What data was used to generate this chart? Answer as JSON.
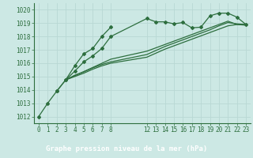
{
  "xlabel": "Graphe pression niveau de la mer (hPa)",
  "bg_color": "#cce8e4",
  "grid_color": "#b8d8d4",
  "line_color": "#2d6e3e",
  "bar_color": "#2d6e3e",
  "bar_text_color": "#ffffff",
  "ylim": [
    1011.5,
    1020.5
  ],
  "xlim": [
    -0.5,
    23.5
  ],
  "yticks": [
    1012,
    1013,
    1014,
    1015,
    1016,
    1017,
    1018,
    1019,
    1020
  ],
  "xticks": [
    0,
    1,
    2,
    3,
    4,
    5,
    6,
    7,
    8,
    12,
    13,
    14,
    15,
    16,
    17,
    18,
    19,
    20,
    21,
    22,
    23
  ],
  "series": [
    {
      "x": [
        0,
        1,
        2,
        3,
        4,
        5,
        6,
        7,
        8,
        12,
        13,
        14,
        15,
        16,
        17,
        18,
        19,
        20,
        21,
        22,
        23
      ],
      "y": [
        1012.0,
        1013.0,
        1013.9,
        1014.75,
        1015.4,
        1016.1,
        1016.55,
        1017.1,
        1018.0,
        1019.35,
        1019.1,
        1019.1,
        1018.95,
        1019.05,
        1018.65,
        1018.7,
        1019.55,
        1019.75,
        1019.75,
        1019.45,
        1018.9
      ],
      "marker": true
    },
    {
      "x": [
        3,
        4,
        5,
        6,
        7,
        8,
        12,
        13,
        14,
        15,
        16,
        17,
        18,
        19,
        20,
        21,
        22,
        23
      ],
      "y": [
        1014.75,
        1015.1,
        1015.35,
        1015.65,
        1015.9,
        1016.1,
        1016.65,
        1016.95,
        1017.25,
        1017.5,
        1017.75,
        1018.0,
        1018.25,
        1018.5,
        1018.8,
        1019.05,
        1018.95,
        1018.9
      ],
      "marker": false
    },
    {
      "x": [
        3,
        4,
        5,
        6,
        7,
        8,
        12,
        13,
        14,
        15,
        16,
        17,
        18,
        19,
        20,
        21,
        22,
        23
      ],
      "y": [
        1014.75,
        1015.0,
        1015.25,
        1015.55,
        1015.8,
        1016.0,
        1016.45,
        1016.75,
        1017.05,
        1017.3,
        1017.55,
        1017.8,
        1018.05,
        1018.3,
        1018.55,
        1018.8,
        1018.9,
        1018.9
      ],
      "marker": false
    },
    {
      "x": [
        3,
        8,
        12,
        13,
        14,
        15,
        16,
        17,
        18,
        19,
        20,
        21,
        22,
        23
      ],
      "y": [
        1014.75,
        1016.3,
        1016.9,
        1017.15,
        1017.4,
        1017.65,
        1017.9,
        1018.15,
        1018.4,
        1018.65,
        1018.9,
        1019.15,
        1018.9,
        1018.85
      ],
      "marker": false
    },
    {
      "x": [
        2,
        3,
        4,
        5,
        6,
        7,
        8
      ],
      "y": [
        1013.9,
        1014.75,
        1015.8,
        1016.7,
        1017.1,
        1018.0,
        1018.7
      ],
      "marker": true
    }
  ],
  "marker_style": "D",
  "marker_size": 2.0,
  "linewidth": 0.9,
  "tick_fontsize": 5.5,
  "xlabel_fontsize": 6.5
}
